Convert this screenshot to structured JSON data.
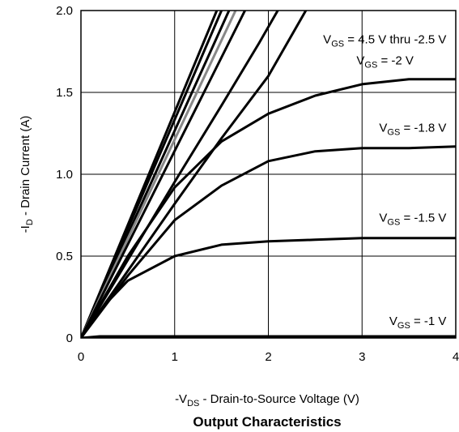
{
  "chart_data": {
    "type": "line",
    "caption": "Output Characteristics",
    "xlabel": {
      "prefix": "-V",
      "sub": "DS",
      "suffix": " - Drain-to-Source Voltage (V)"
    },
    "ylabel": {
      "prefix": "-I",
      "sub": "D",
      "suffix": " - Drain Current (A)"
    },
    "xlim": [
      0,
      4
    ],
    "ylim": [
      0,
      2.0
    ],
    "xticks": [
      {
        "value": 0,
        "label": "0"
      },
      {
        "value": 1,
        "label": "1"
      },
      {
        "value": 2,
        "label": "2"
      },
      {
        "value": 3,
        "label": "3"
      },
      {
        "value": 4,
        "label": "4"
      }
    ],
    "yticks": [
      {
        "value": 0,
        "label": "0"
      },
      {
        "value": 0.5,
        "label": "0.5"
      },
      {
        "value": 1.0,
        "label": "1.0"
      },
      {
        "value": 1.5,
        "label": "1.5"
      },
      {
        "value": 2.0,
        "label": "2.0"
      }
    ],
    "grid": true,
    "colors": {
      "curve": "#000000",
      "highlight": "#888888",
      "grid": "#000000"
    },
    "series": [
      {
        "vgs": "4.5 V thru -2.5 V",
        "gray": false,
        "points": [
          [
            0,
            0
          ],
          [
            1.45,
            2.0
          ]
        ]
      },
      {
        "vgs": "4.5 V thru -2.5 V",
        "gray": false,
        "points": [
          [
            0,
            0
          ],
          [
            1.5,
            2.0
          ]
        ]
      },
      {
        "vgs": "4.5 V thru -2.5 V",
        "gray": false,
        "points": [
          [
            0,
            0
          ],
          [
            1.58,
            2.0
          ]
        ]
      },
      {
        "vgs": "4.5 V thru -2.5 V",
        "gray": true,
        "points": [
          [
            0,
            0
          ],
          [
            1.65,
            2.0
          ]
        ]
      },
      {
        "vgs": "4.5 V thru -2.5 V",
        "gray": false,
        "points": [
          [
            0,
            0
          ],
          [
            1.75,
            2.0
          ]
        ]
      },
      {
        "vgs": "4.5 V thru -2.5 V",
        "gray": false,
        "points": [
          [
            0,
            0
          ],
          [
            1.05,
            1.0
          ],
          [
            1.5,
            1.42
          ],
          [
            1.9,
            1.8
          ],
          [
            2.1,
            2.0
          ]
        ]
      },
      {
        "vgs": "4.5 V thru -2.5 V",
        "gray": false,
        "points": [
          [
            0,
            0
          ],
          [
            1.0,
            0.82
          ],
          [
            1.5,
            1.22
          ],
          [
            2.0,
            1.6
          ],
          [
            2.4,
            2.0
          ]
        ]
      },
      {
        "vgs": "-2 V",
        "gray": false,
        "points": [
          [
            0,
            0
          ],
          [
            0.5,
            0.5
          ],
          [
            1.0,
            0.92
          ],
          [
            1.5,
            1.2
          ],
          [
            2.0,
            1.37
          ],
          [
            2.5,
            1.48
          ],
          [
            3.0,
            1.55
          ],
          [
            3.5,
            1.58
          ],
          [
            4.0,
            1.58
          ]
        ]
      },
      {
        "vgs": "-1.8 V",
        "gray": false,
        "points": [
          [
            0,
            0
          ],
          [
            0.5,
            0.38
          ],
          [
            1.0,
            0.72
          ],
          [
            1.5,
            0.93
          ],
          [
            2.0,
            1.08
          ],
          [
            2.5,
            1.14
          ],
          [
            3.0,
            1.16
          ],
          [
            3.5,
            1.16
          ],
          [
            4.0,
            1.17
          ]
        ]
      },
      {
        "vgs": "-1.5 V",
        "gray": false,
        "points": [
          [
            0,
            0
          ],
          [
            0.25,
            0.2
          ],
          [
            0.5,
            0.35
          ],
          [
            1.0,
            0.5
          ],
          [
            1.5,
            0.57
          ],
          [
            2.0,
            0.59
          ],
          [
            2.5,
            0.6
          ],
          [
            3.0,
            0.61
          ],
          [
            4.0,
            0.61
          ]
        ]
      },
      {
        "vgs": "-1 V",
        "gray": false,
        "points": [
          [
            0,
            0
          ],
          [
            0.2,
            0.01
          ],
          [
            4.0,
            0.01
          ]
        ]
      }
    ],
    "annotations": [
      {
        "prefix": "V",
        "sub": "GS",
        "suffix": " = 4.5 V thru -2.5 V",
        "x": 3.9,
        "y": 1.8
      },
      {
        "prefix": "V",
        "sub": "GS",
        "suffix": " = -2 V",
        "x": 3.55,
        "y": 1.67
      },
      {
        "prefix": "V",
        "sub": "GS",
        "suffix": " = -1.8 V",
        "x": 3.9,
        "y": 1.26
      },
      {
        "prefix": "V",
        "sub": "GS",
        "suffix": " = -1.5 V",
        "x": 3.9,
        "y": 0.71
      },
      {
        "prefix": "V",
        "sub": "GS",
        "suffix": " = -1 V",
        "x": 3.9,
        "y": 0.08
      }
    ]
  }
}
